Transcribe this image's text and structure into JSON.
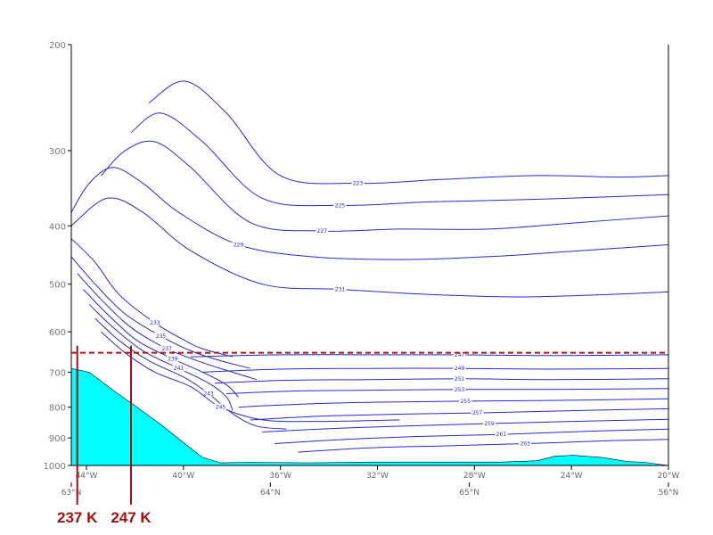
{
  "chart_data": {
    "type": "line",
    "title": "",
    "xlabel": "",
    "ylabel": "",
    "y_axis": {
      "scale": "log",
      "inverted": true,
      "ylim": [
        1000,
        200
      ],
      "tick_values": [
        200,
        300,
        400,
        500,
        600,
        700,
        800,
        900,
        1000
      ],
      "tick_labels": [
        "200",
        "300",
        "400",
        "500",
        "600",
        "700",
        "800",
        "900",
        "1000"
      ]
    },
    "x_axis": {
      "top_row_labels": [
        "44°W",
        "40°W",
        "36°W",
        "32°W",
        "28°W",
        "24°W",
        "20°W"
      ],
      "bottom_row_labels": [
        "63°N",
        "64°N",
        "65°N",
        "56°N"
      ]
    },
    "terrain": {
      "color": "#00ffff",
      "surface_pressure_hpa": [
        [
          0.0,
          690
        ],
        [
          0.03,
          700
        ],
        [
          0.07,
          750
        ],
        [
          0.11,
          800
        ],
        [
          0.15,
          855
        ],
        [
          0.19,
          920
        ],
        [
          0.22,
          970
        ],
        [
          0.25,
          990
        ],
        [
          0.3,
          988
        ],
        [
          0.4,
          990
        ],
        [
          0.5,
          987
        ],
        [
          0.6,
          987
        ],
        [
          0.72,
          987
        ],
        [
          0.78,
          982
        ],
        [
          0.81,
          965
        ],
        [
          0.84,
          962
        ],
        [
          0.89,
          970
        ],
        [
          0.93,
          985
        ],
        [
          0.96,
          988
        ],
        [
          1.0,
          1000
        ]
      ]
    },
    "reference_level": {
      "pressure_hpa": 650,
      "color": "#b01010",
      "style": "dashed"
    },
    "annotations": [
      {
        "text": "237 K",
        "position_fraction": 0.01,
        "color": "#a01010"
      },
      {
        "text": "247 K",
        "position_fraction": 0.1,
        "color": "#a01010"
      }
    ],
    "contour_color": "#2a2acc",
    "contours": [
      {
        "label": "233",
        "points": [
          [
            0.0,
            420
          ],
          [
            0.04,
            460
          ],
          [
            0.08,
            520
          ],
          [
            0.14,
            580
          ],
          [
            0.19,
            620
          ],
          [
            0.22,
            640
          ],
          [
            0.27,
            660
          ]
        ]
      },
      {
        "label": "235",
        "points": [
          [
            0.0,
            450
          ],
          [
            0.04,
            500
          ],
          [
            0.09,
            560
          ],
          [
            0.15,
            610
          ],
          [
            0.2,
            645
          ],
          [
            0.25,
            670
          ],
          [
            0.3,
            690
          ]
        ]
      },
      {
        "label": "237",
        "points": [
          [
            0.01,
            480
          ],
          [
            0.05,
            530
          ],
          [
            0.1,
            590
          ],
          [
            0.16,
            640
          ],
          [
            0.22,
            675
          ],
          [
            0.27,
            700
          ],
          [
            0.31,
            720
          ]
        ]
      },
      {
        "label": "239",
        "points": [
          [
            0.02,
            510
          ],
          [
            0.06,
            560
          ],
          [
            0.11,
            620
          ],
          [
            0.17,
            665
          ],
          [
            0.22,
            700
          ],
          [
            0.26,
            735
          ],
          [
            0.28,
            770
          ]
        ]
      },
      {
        "label": "241",
        "points": [
          [
            0.03,
            540
          ],
          [
            0.07,
            590
          ],
          [
            0.12,
            645
          ],
          [
            0.18,
            690
          ],
          [
            0.23,
            730
          ],
          [
            0.26,
            770
          ],
          [
            0.27,
            810
          ]
        ]
      },
      {
        "label": "243",
        "points": [
          [
            0.04,
            570
          ],
          [
            0.08,
            620
          ],
          [
            0.13,
            670
          ],
          [
            0.19,
            715
          ],
          [
            0.23,
            760
          ],
          [
            0.27,
            820
          ],
          [
            0.31,
            860
          ],
          [
            0.36,
            870
          ]
        ]
      },
      {
        "label": "245",
        "points": [
          [
            0.05,
            600
          ],
          [
            0.09,
            650
          ],
          [
            0.14,
            700
          ],
          [
            0.2,
            740
          ],
          [
            0.25,
            800
          ],
          [
            0.32,
            840
          ],
          [
            0.42,
            845
          ],
          [
            0.55,
            840
          ]
        ]
      },
      {
        "label": "229",
        "points": [
          [
            0.0,
            380
          ],
          [
            0.03,
            340
          ],
          [
            0.07,
            320
          ],
          [
            0.12,
            340
          ],
          [
            0.18,
            380
          ],
          [
            0.28,
            430
          ],
          [
            0.4,
            450
          ],
          [
            0.55,
            455
          ],
          [
            0.7,
            450
          ],
          [
            0.85,
            440
          ],
          [
            1.0,
            430
          ]
        ]
      },
      {
        "label": "227",
        "points": [
          [
            0.05,
            330
          ],
          [
            0.09,
            300
          ],
          [
            0.14,
            290
          ],
          [
            0.2,
            320
          ],
          [
            0.3,
            395
          ],
          [
            0.42,
            408
          ],
          [
            0.55,
            405
          ],
          [
            0.7,
            405
          ],
          [
            0.85,
            395
          ],
          [
            1.0,
            385
          ]
        ]
      },
      {
        "label": "231",
        "points": [
          [
            0.0,
            400
          ],
          [
            0.06,
            360
          ],
          [
            0.12,
            380
          ],
          [
            0.2,
            440
          ],
          [
            0.32,
            500
          ],
          [
            0.45,
            510
          ],
          [
            0.6,
            520
          ],
          [
            0.75,
            525
          ],
          [
            0.9,
            520
          ],
          [
            1.0,
            515
          ]
        ]
      },
      {
        "label": "225",
        "points": [
          [
            0.1,
            280
          ],
          [
            0.15,
            260
          ],
          [
            0.22,
            290
          ],
          [
            0.32,
            360
          ],
          [
            0.45,
            370
          ],
          [
            0.6,
            365
          ],
          [
            0.75,
            362
          ],
          [
            0.9,
            358
          ],
          [
            1.0,
            355
          ]
        ]
      },
      {
        "label": "223",
        "points": [
          [
            0.13,
            250
          ],
          [
            0.19,
            230
          ],
          [
            0.26,
            260
          ],
          [
            0.35,
            330
          ],
          [
            0.48,
            340
          ],
          [
            0.62,
            335
          ],
          [
            0.78,
            330
          ],
          [
            0.92,
            332
          ],
          [
            1.0,
            330
          ]
        ]
      },
      {
        "label": "247",
        "points": [
          [
            0.2,
            660
          ],
          [
            0.35,
            655
          ],
          [
            0.5,
            655
          ],
          [
            0.65,
            655
          ],
          [
            0.8,
            657
          ],
          [
            1.0,
            655
          ]
        ]
      },
      {
        "label": "249",
        "points": [
          [
            0.22,
            700
          ],
          [
            0.35,
            692
          ],
          [
            0.5,
            690
          ],
          [
            0.65,
            690
          ],
          [
            0.8,
            692
          ],
          [
            1.0,
            690
          ]
        ]
      },
      {
        "label": "251",
        "points": [
          [
            0.24,
            730
          ],
          [
            0.36,
            722
          ],
          [
            0.5,
            720
          ],
          [
            0.65,
            718
          ],
          [
            0.8,
            720
          ],
          [
            1.0,
            718
          ]
        ]
      },
      {
        "label": "253",
        "points": [
          [
            0.26,
            760
          ],
          [
            0.38,
            752
          ],
          [
            0.5,
            750
          ],
          [
            0.65,
            748
          ],
          [
            0.8,
            748
          ],
          [
            1.0,
            745
          ]
        ]
      },
      {
        "label": "255",
        "points": [
          [
            0.28,
            800
          ],
          [
            0.4,
            790
          ],
          [
            0.52,
            785
          ],
          [
            0.66,
            782
          ],
          [
            0.8,
            780
          ],
          [
            1.0,
            775
          ]
        ]
      },
      {
        "label": "257",
        "points": [
          [
            0.3,
            840
          ],
          [
            0.42,
            828
          ],
          [
            0.55,
            822
          ],
          [
            0.68,
            818
          ],
          [
            0.82,
            812
          ],
          [
            1.0,
            805
          ]
        ]
      },
      {
        "label": "259",
        "points": [
          [
            0.32,
            880
          ],
          [
            0.44,
            868
          ],
          [
            0.56,
            860
          ],
          [
            0.7,
            852
          ],
          [
            0.84,
            845
          ],
          [
            1.0,
            838
          ]
        ]
      },
      {
        "label": "261",
        "points": [
          [
            0.34,
            920
          ],
          [
            0.46,
            905
          ],
          [
            0.58,
            895
          ],
          [
            0.72,
            888
          ],
          [
            0.86,
            878
          ],
          [
            1.0,
            870
          ]
        ]
      },
      {
        "label": "263",
        "points": [
          [
            0.38,
            950
          ],
          [
            0.5,
            935
          ],
          [
            0.62,
            928
          ],
          [
            0.76,
            920
          ],
          [
            0.9,
            910
          ],
          [
            1.0,
            905
          ]
        ]
      }
    ]
  }
}
